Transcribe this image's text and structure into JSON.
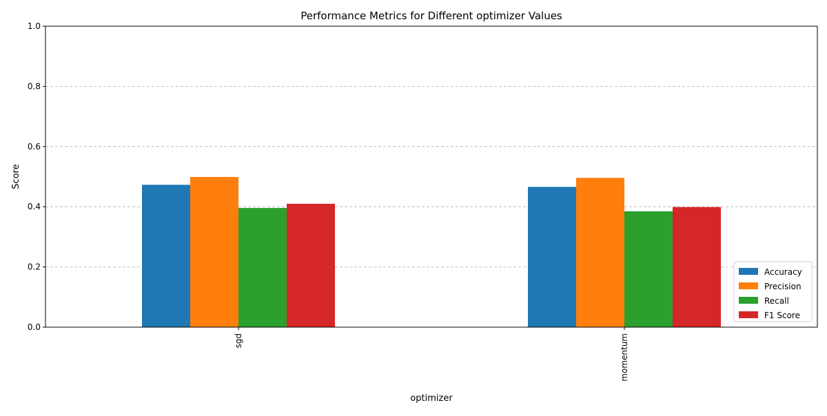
{
  "chart_data": {
    "type": "bar",
    "title": "Performance Metrics for Different optimizer Values",
    "xlabel": "optimizer",
    "ylabel": "Score",
    "categories": [
      "sgd",
      "momentum"
    ],
    "series": [
      {
        "name": "Accuracy",
        "color": "#1f77b4",
        "values": [
          0.473,
          0.466
        ]
      },
      {
        "name": "Precision",
        "color": "#ff7f0e",
        "values": [
          0.499,
          0.496
        ]
      },
      {
        "name": "Recall",
        "color": "#2ca02c",
        "values": [
          0.396,
          0.385
        ]
      },
      {
        "name": "F1 Score",
        "color": "#d62728",
        "values": [
          0.41,
          0.399
        ]
      }
    ],
    "ylim": [
      0,
      1.0
    ],
    "yticks": [
      "0.0",
      "0.2",
      "0.4",
      "0.6",
      "0.8",
      "1.0"
    ],
    "grid": "y-dashed",
    "legend_position": "lower-right"
  }
}
